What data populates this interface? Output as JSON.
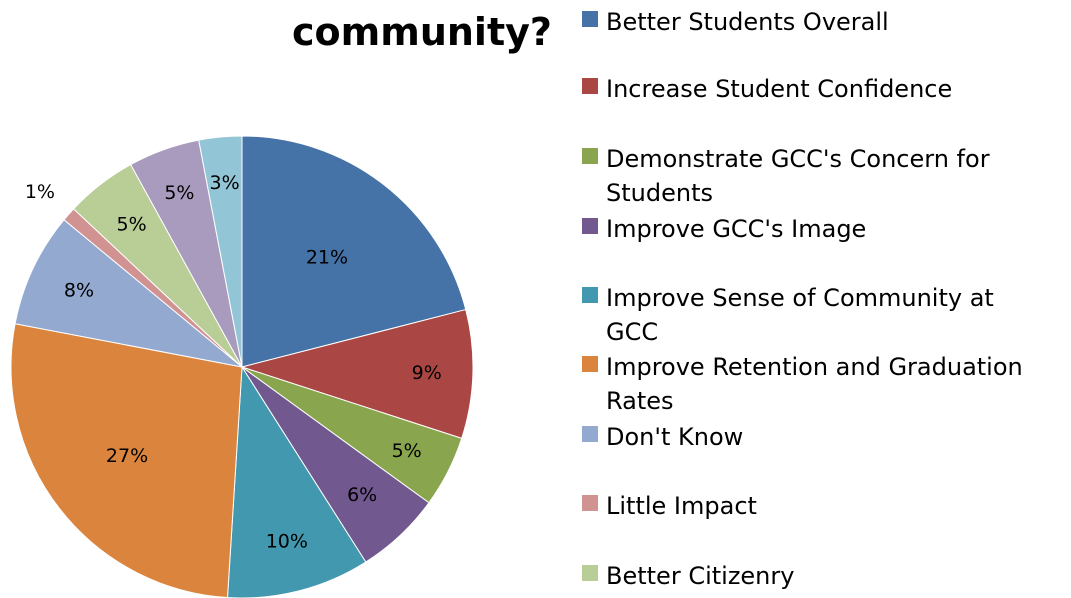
{
  "chart_data": {
    "type": "pie",
    "title": "community?",
    "categories": [
      "Better Students Overall",
      "Increase Student Confidence",
      "Demonstrate GCC's Concern for Students",
      "Improve GCC's Image",
      "Improve Sense of Community at GCC",
      "Improve Retention and Graduation Rates",
      "Don't Know",
      "Little Impact",
      "Better Citizenry",
      "",
      ""
    ],
    "values": [
      21,
      9,
      5,
      6,
      10,
      27,
      8,
      1,
      5,
      5,
      3
    ],
    "data_labels": [
      "21%",
      "9%",
      "5%",
      "6%",
      "10%",
      "27%",
      "8%",
      "1%",
      "5%",
      "5%",
      "3%"
    ],
    "colors": [
      "#4572A7",
      "#AA4643",
      "#89A54E",
      "#71588F",
      "#4198AF",
      "#DB843D",
      "#93A9CF",
      "#D19392",
      "#B9CD96",
      "#A99BBD",
      "#92C5D5"
    ],
    "legend_position": "right",
    "start": "top",
    "direction": "clockwise"
  }
}
